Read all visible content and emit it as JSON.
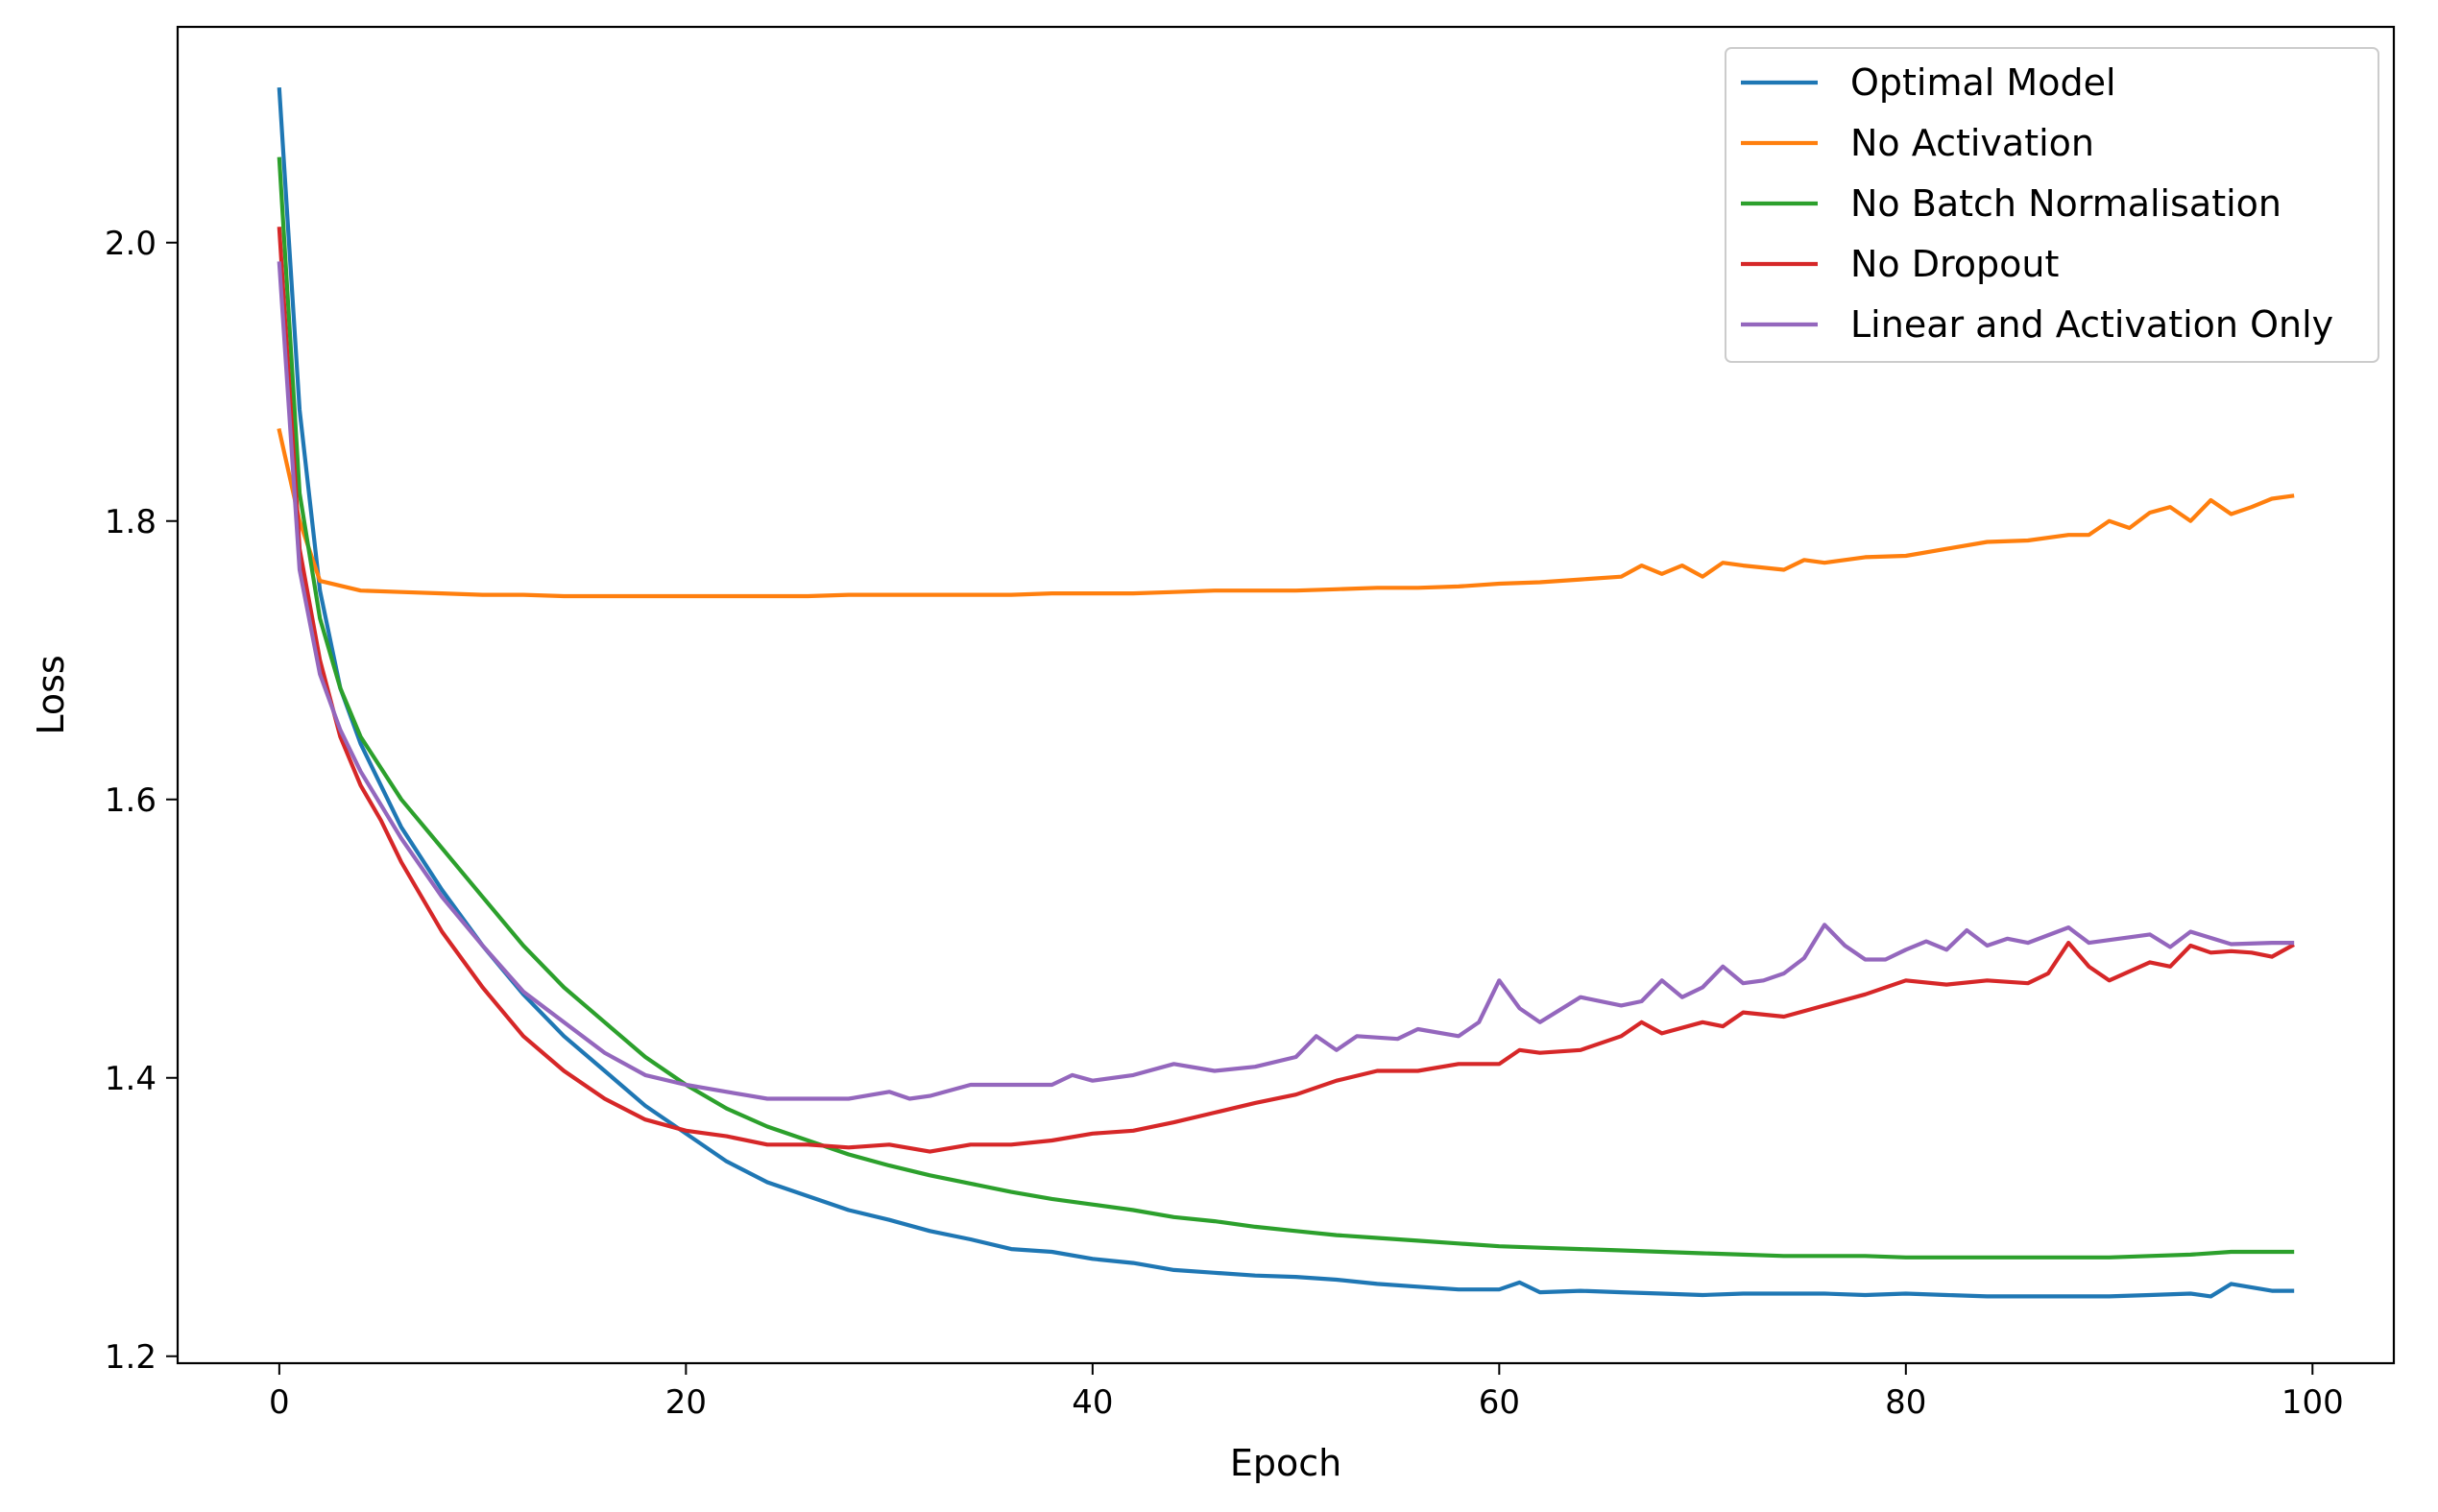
{
  "chart_data": {
    "type": "line",
    "title": "",
    "xlabel": "Epoch",
    "ylabel": "Loss",
    "xlim": [
      -5,
      104
    ],
    "ylim": [
      1.195,
      2.155
    ],
    "xticks": [
      0,
      20,
      40,
      60,
      80,
      100
    ],
    "xtick_labels": [
      "0",
      "20",
      "40",
      "60",
      "80",
      "100"
    ],
    "yticks": [
      1.2,
      1.4,
      1.6,
      1.8,
      2.0
    ],
    "ytick_labels": [
      "1.2",
      "1.4",
      "1.6",
      "1.8",
      "2.0"
    ],
    "grid": false,
    "legend_position": "top-right",
    "series": [
      {
        "name": "Optimal Model",
        "color": "#1f77b4",
        "points": [
          [
            0,
            2.11
          ],
          [
            1,
            1.88
          ],
          [
            2,
            1.75
          ],
          [
            3,
            1.68
          ],
          [
            4,
            1.64
          ],
          [
            5,
            1.61
          ],
          [
            6,
            1.58
          ],
          [
            8,
            1.535
          ],
          [
            10,
            1.495
          ],
          [
            12,
            1.46
          ],
          [
            14,
            1.43
          ],
          [
            16,
            1.405
          ],
          [
            18,
            1.38
          ],
          [
            20,
            1.36
          ],
          [
            22,
            1.34
          ],
          [
            24,
            1.325
          ],
          [
            26,
            1.315
          ],
          [
            28,
            1.305
          ],
          [
            30,
            1.298
          ],
          [
            32,
            1.29
          ],
          [
            34,
            1.284
          ],
          [
            36,
            1.277
          ],
          [
            38,
            1.275
          ],
          [
            40,
            1.27
          ],
          [
            42,
            1.267
          ],
          [
            44,
            1.262
          ],
          [
            46,
            1.26
          ],
          [
            48,
            1.258
          ],
          [
            50,
            1.257
          ],
          [
            52,
            1.255
          ],
          [
            54,
            1.252
          ],
          [
            56,
            1.25
          ],
          [
            58,
            1.248
          ],
          [
            60,
            1.248
          ],
          [
            61,
            1.253
          ],
          [
            62,
            1.246
          ],
          [
            64,
            1.247
          ],
          [
            66,
            1.246
          ],
          [
            68,
            1.245
          ],
          [
            70,
            1.244
          ],
          [
            72,
            1.245
          ],
          [
            74,
            1.245
          ],
          [
            76,
            1.245
          ],
          [
            78,
            1.244
          ],
          [
            80,
            1.245
          ],
          [
            82,
            1.244
          ],
          [
            84,
            1.243
          ],
          [
            86,
            1.243
          ],
          [
            88,
            1.243
          ],
          [
            90,
            1.243
          ],
          [
            92,
            1.244
          ],
          [
            94,
            1.245
          ],
          [
            95,
            1.243
          ],
          [
            96,
            1.252
          ],
          [
            98,
            1.247
          ],
          [
            99,
            1.247
          ]
        ]
      },
      {
        "name": "No Activation",
        "color": "#ff7f0e",
        "points": [
          [
            0,
            1.865
          ],
          [
            1,
            1.8
          ],
          [
            2,
            1.757
          ],
          [
            4,
            1.75
          ],
          [
            6,
            1.749
          ],
          [
            8,
            1.748
          ],
          [
            10,
            1.747
          ],
          [
            12,
            1.747
          ],
          [
            14,
            1.746
          ],
          [
            16,
            1.746
          ],
          [
            18,
            1.746
          ],
          [
            20,
            1.746
          ],
          [
            22,
            1.746
          ],
          [
            24,
            1.746
          ],
          [
            26,
            1.746
          ],
          [
            28,
            1.747
          ],
          [
            30,
            1.747
          ],
          [
            32,
            1.747
          ],
          [
            34,
            1.747
          ],
          [
            36,
            1.747
          ],
          [
            38,
            1.748
          ],
          [
            40,
            1.748
          ],
          [
            42,
            1.748
          ],
          [
            44,
            1.749
          ],
          [
            46,
            1.75
          ],
          [
            48,
            1.75
          ],
          [
            50,
            1.75
          ],
          [
            52,
            1.751
          ],
          [
            54,
            1.752
          ],
          [
            56,
            1.752
          ],
          [
            58,
            1.753
          ],
          [
            60,
            1.755
          ],
          [
            62,
            1.756
          ],
          [
            64,
            1.758
          ],
          [
            66,
            1.76
          ],
          [
            67,
            1.768
          ],
          [
            68,
            1.762
          ],
          [
            69,
            1.768
          ],
          [
            70,
            1.76
          ],
          [
            71,
            1.77
          ],
          [
            72,
            1.768
          ],
          [
            74,
            1.765
          ],
          [
            75,
            1.772
          ],
          [
            76,
            1.77
          ],
          [
            78,
            1.774
          ],
          [
            80,
            1.775
          ],
          [
            82,
            1.78
          ],
          [
            84,
            1.785
          ],
          [
            86,
            1.786
          ],
          [
            88,
            1.79
          ],
          [
            89,
            1.79
          ],
          [
            90,
            1.8
          ],
          [
            91,
            1.795
          ],
          [
            92,
            1.806
          ],
          [
            93,
            1.81
          ],
          [
            94,
            1.8
          ],
          [
            95,
            1.815
          ],
          [
            96,
            1.805
          ],
          [
            97,
            1.81
          ],
          [
            98,
            1.816
          ],
          [
            99,
            1.818
          ]
        ]
      },
      {
        "name": "No Batch Normalisation",
        "color": "#2ca02c",
        "points": [
          [
            0,
            2.06
          ],
          [
            1,
            1.82
          ],
          [
            2,
            1.73
          ],
          [
            3,
            1.68
          ],
          [
            4,
            1.645
          ],
          [
            6,
            1.6
          ],
          [
            8,
            1.565
          ],
          [
            10,
            1.53
          ],
          [
            12,
            1.495
          ],
          [
            14,
            1.465
          ],
          [
            16,
            1.44
          ],
          [
            18,
            1.415
          ],
          [
            20,
            1.395
          ],
          [
            22,
            1.378
          ],
          [
            24,
            1.365
          ],
          [
            26,
            1.355
          ],
          [
            28,
            1.345
          ],
          [
            30,
            1.337
          ],
          [
            32,
            1.33
          ],
          [
            34,
            1.324
          ],
          [
            36,
            1.318
          ],
          [
            38,
            1.313
          ],
          [
            40,
            1.309
          ],
          [
            42,
            1.305
          ],
          [
            44,
            1.3
          ],
          [
            46,
            1.297
          ],
          [
            48,
            1.293
          ],
          [
            50,
            1.29
          ],
          [
            52,
            1.287
          ],
          [
            54,
            1.285
          ],
          [
            56,
            1.283
          ],
          [
            58,
            1.281
          ],
          [
            60,
            1.279
          ],
          [
            62,
            1.278
          ],
          [
            64,
            1.277
          ],
          [
            66,
            1.276
          ],
          [
            68,
            1.275
          ],
          [
            70,
            1.274
          ],
          [
            72,
            1.273
          ],
          [
            74,
            1.272
          ],
          [
            76,
            1.272
          ],
          [
            78,
            1.272
          ],
          [
            80,
            1.271
          ],
          [
            82,
            1.271
          ],
          [
            84,
            1.271
          ],
          [
            86,
            1.271
          ],
          [
            88,
            1.271
          ],
          [
            90,
            1.271
          ],
          [
            92,
            1.272
          ],
          [
            94,
            1.273
          ],
          [
            96,
            1.275
          ],
          [
            98,
            1.275
          ],
          [
            99,
            1.275
          ]
        ]
      },
      {
        "name": "No Dropout",
        "color": "#d62728",
        "points": [
          [
            0,
            2.01
          ],
          [
            1,
            1.78
          ],
          [
            2,
            1.7
          ],
          [
            3,
            1.645
          ],
          [
            4,
            1.61
          ],
          [
            5,
            1.585
          ],
          [
            6,
            1.555
          ],
          [
            8,
            1.505
          ],
          [
            10,
            1.465
          ],
          [
            12,
            1.43
          ],
          [
            14,
            1.405
          ],
          [
            16,
            1.385
          ],
          [
            18,
            1.37
          ],
          [
            20,
            1.362
          ],
          [
            22,
            1.358
          ],
          [
            24,
            1.352
          ],
          [
            26,
            1.352
          ],
          [
            28,
            1.35
          ],
          [
            30,
            1.352
          ],
          [
            32,
            1.347
          ],
          [
            34,
            1.352
          ],
          [
            36,
            1.352
          ],
          [
            38,
            1.355
          ],
          [
            40,
            1.36
          ],
          [
            42,
            1.362
          ],
          [
            44,
            1.368
          ],
          [
            46,
            1.375
          ],
          [
            48,
            1.382
          ],
          [
            50,
            1.388
          ],
          [
            52,
            1.398
          ],
          [
            54,
            1.405
          ],
          [
            56,
            1.405
          ],
          [
            58,
            1.41
          ],
          [
            60,
            1.41
          ],
          [
            61,
            1.42
          ],
          [
            62,
            1.418
          ],
          [
            64,
            1.42
          ],
          [
            66,
            1.43
          ],
          [
            67,
            1.44
          ],
          [
            68,
            1.432
          ],
          [
            70,
            1.44
          ],
          [
            71,
            1.437
          ],
          [
            72,
            1.447
          ],
          [
            74,
            1.444
          ],
          [
            76,
            1.452
          ],
          [
            78,
            1.46
          ],
          [
            80,
            1.47
          ],
          [
            82,
            1.467
          ],
          [
            84,
            1.47
          ],
          [
            86,
            1.468
          ],
          [
            87,
            1.475
          ],
          [
            88,
            1.497
          ],
          [
            89,
            1.48
          ],
          [
            90,
            1.47
          ],
          [
            92,
            1.483
          ],
          [
            93,
            1.48
          ],
          [
            94,
            1.495
          ],
          [
            95,
            1.49
          ],
          [
            96,
            1.491
          ],
          [
            97,
            1.49
          ],
          [
            98,
            1.487
          ],
          [
            99,
            1.495
          ]
        ]
      },
      {
        "name": "Linear and Activation Only",
        "color": "#9467bd",
        "points": [
          [
            0,
            1.985
          ],
          [
            1,
            1.765
          ],
          [
            2,
            1.69
          ],
          [
            3,
            1.65
          ],
          [
            4,
            1.62
          ],
          [
            6,
            1.572
          ],
          [
            8,
            1.53
          ],
          [
            10,
            1.495
          ],
          [
            12,
            1.462
          ],
          [
            14,
            1.44
          ],
          [
            16,
            1.418
          ],
          [
            18,
            1.402
          ],
          [
            20,
            1.395
          ],
          [
            22,
            1.39
          ],
          [
            24,
            1.385
          ],
          [
            26,
            1.385
          ],
          [
            28,
            1.385
          ],
          [
            30,
            1.39
          ],
          [
            31,
            1.385
          ],
          [
            32,
            1.387
          ],
          [
            34,
            1.395
          ],
          [
            36,
            1.395
          ],
          [
            38,
            1.395
          ],
          [
            39,
            1.402
          ],
          [
            40,
            1.398
          ],
          [
            42,
            1.402
          ],
          [
            44,
            1.41
          ],
          [
            46,
            1.405
          ],
          [
            48,
            1.408
          ],
          [
            50,
            1.415
          ],
          [
            51,
            1.43
          ],
          [
            52,
            1.42
          ],
          [
            53,
            1.43
          ],
          [
            55,
            1.428
          ],
          [
            56,
            1.435
          ],
          [
            58,
            1.43
          ],
          [
            59,
            1.44
          ],
          [
            60,
            1.47
          ],
          [
            61,
            1.45
          ],
          [
            62,
            1.44
          ],
          [
            64,
            1.458
          ],
          [
            66,
            1.452
          ],
          [
            67,
            1.455
          ],
          [
            68,
            1.47
          ],
          [
            69,
            1.458
          ],
          [
            70,
            1.465
          ],
          [
            71,
            1.48
          ],
          [
            72,
            1.468
          ],
          [
            73,
            1.47
          ],
          [
            74,
            1.475
          ],
          [
            75,
            1.486
          ],
          [
            76,
            1.51
          ],
          [
            77,
            1.495
          ],
          [
            78,
            1.485
          ],
          [
            79,
            1.485
          ],
          [
            80,
            1.492
          ],
          [
            81,
            1.498
          ],
          [
            82,
            1.492
          ],
          [
            83,
            1.506
          ],
          [
            84,
            1.495
          ],
          [
            85,
            1.5
          ],
          [
            86,
            1.497
          ],
          [
            88,
            1.508
          ],
          [
            89,
            1.497
          ],
          [
            92,
            1.503
          ],
          [
            93,
            1.494
          ],
          [
            94,
            1.505
          ],
          [
            96,
            1.496
          ],
          [
            98,
            1.497
          ],
          [
            99,
            1.497
          ]
        ]
      }
    ]
  }
}
